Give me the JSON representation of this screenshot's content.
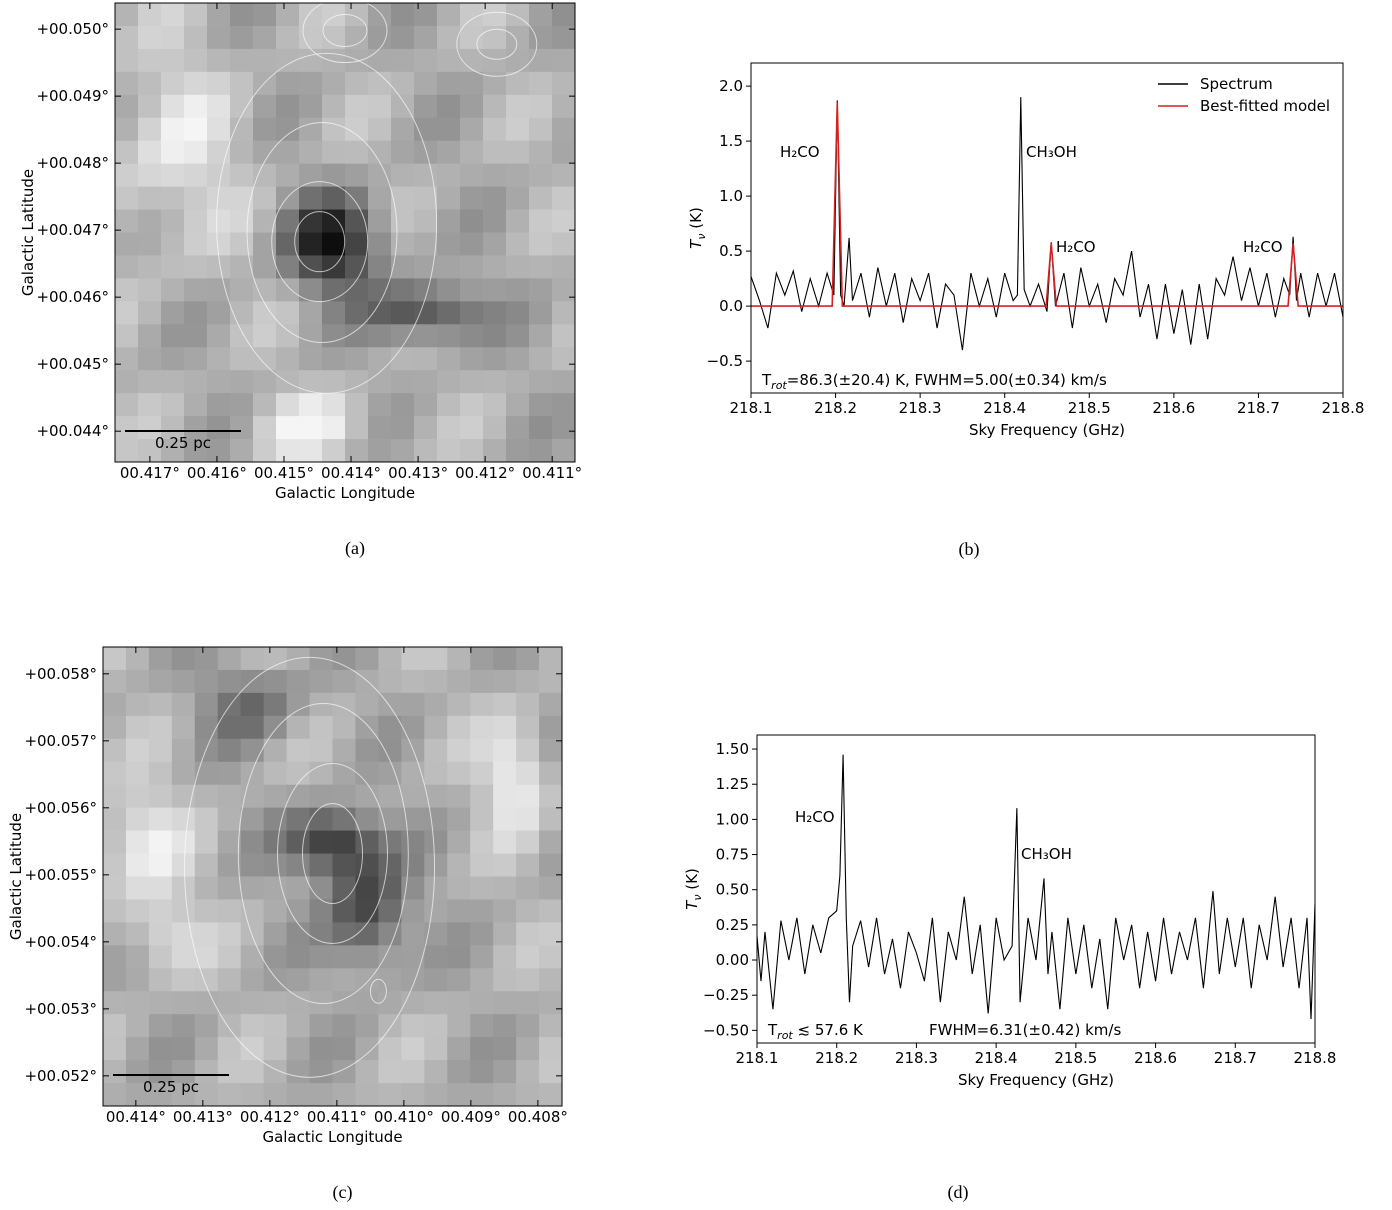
{
  "chart_data": [
    {
      "type": "image",
      "caption": "(a)",
      "xlabel": "Galactic Longitude",
      "ylabel": "Galactic Latitude",
      "scale_bar": "0.25 pc",
      "xlim": [
        0.41752,
        0.41066
      ],
      "ylim": [
        0.04354,
        0.05039
      ],
      "xticks": [
        {
          "value": 0.417,
          "label": "00.417°"
        },
        {
          "value": 0.416,
          "label": "00.416°"
        },
        {
          "value": 0.415,
          "label": "00.415°"
        },
        {
          "value": 0.414,
          "label": "00.414°"
        },
        {
          "value": 0.413,
          "label": "00.413°"
        },
        {
          "value": 0.412,
          "label": "00.412°"
        },
        {
          "value": 0.411,
          "label": "00.411°"
        }
      ],
      "yticks": [
        {
          "value": 0.05,
          "label": "+00.050°"
        },
        {
          "value": 0.049,
          "label": "+00.049°"
        },
        {
          "value": 0.048,
          "label": "+00.048°"
        },
        {
          "value": 0.047,
          "label": "+00.047°"
        },
        {
          "value": 0.046,
          "label": "+00.046°"
        },
        {
          "value": 0.045,
          "label": "+00.045°"
        },
        {
          "value": 0.044,
          "label": "+00.044°"
        }
      ]
    },
    {
      "type": "line",
      "caption": "(b)",
      "xlabel": "Sky Frequency (GHz)",
      "ylabel": {
        "symbol": "T",
        "subscript": "ν",
        "unit": " (K)"
      },
      "xlim": [
        218.1,
        218.8
      ],
      "ylim": [
        -0.79,
        2.21
      ],
      "xticks": [
        218.1,
        218.2,
        218.3,
        218.4,
        218.5,
        218.6,
        218.7,
        218.8
      ],
      "yticks": [
        {
          "value": -0.5,
          "label": "−0.5"
        },
        {
          "value": 0,
          "label": "0.0"
        },
        {
          "value": 0.5,
          "label": "0.5"
        },
        {
          "value": 1,
          "label": "1.0"
        },
        {
          "value": 1.5,
          "label": "1.5"
        },
        {
          "value": 2,
          "label": "2.0"
        }
      ],
      "legend": "upper right",
      "series": [
        {
          "name": "Spectrum",
          "color": "#000000",
          "x": [
            218.1,
            218.11,
            218.12,
            218.13,
            218.14,
            218.15,
            218.16,
            218.17,
            218.18,
            218.19,
            218.198,
            218.202,
            218.206,
            218.21,
            218.216,
            218.22,
            218.23,
            218.24,
            218.25,
            218.26,
            218.27,
            218.28,
            218.29,
            218.3,
            218.31,
            218.32,
            218.33,
            218.34,
            218.35,
            218.36,
            218.37,
            218.38,
            218.39,
            218.4,
            218.41,
            218.415,
            218.419,
            218.423,
            218.43,
            218.44,
            218.45,
            218.455,
            218.46,
            218.47,
            218.48,
            218.49,
            218.5,
            218.51,
            218.52,
            218.53,
            218.54,
            218.55,
            218.56,
            218.57,
            218.58,
            218.59,
            218.6,
            218.61,
            218.62,
            218.63,
            218.64,
            218.65,
            218.66,
            218.67,
            218.68,
            218.69,
            218.7,
            218.71,
            218.72,
            218.73,
            218.737,
            218.741,
            218.745,
            218.75,
            218.76,
            218.77,
            218.78,
            218.79,
            218.8
          ],
          "values": [
            0.27,
            0.05,
            -0.2,
            0.3,
            0.1,
            0.32,
            -0.05,
            0.25,
            0.0,
            0.3,
            0.1,
            1.87,
            0.1,
            0.0,
            0.62,
            0.05,
            0.3,
            -0.1,
            0.35,
            0.0,
            0.3,
            -0.15,
            0.25,
            0.05,
            0.3,
            -0.2,
            0.2,
            0.1,
            -0.4,
            0.3,
            0.0,
            0.25,
            -0.1,
            0.3,
            0.05,
            0.1,
            1.9,
            0.15,
            0.0,
            0.2,
            -0.05,
            0.58,
            0.0,
            0.3,
            -0.2,
            0.35,
            0.0,
            0.2,
            -0.15,
            0.25,
            0.1,
            0.5,
            -0.1,
            0.2,
            -0.3,
            0.2,
            -0.25,
            0.15,
            -0.35,
            0.2,
            -0.3,
            0.25,
            0.1,
            0.45,
            0.05,
            0.35,
            0.0,
            0.3,
            -0.1,
            0.25,
            0.1,
            0.63,
            0.05,
            0.3,
            -0.1,
            0.3,
            0.0,
            0.3,
            -0.1
          ]
        },
        {
          "name": "Best-fitted model",
          "color": "#d62020",
          "x": [
            218.1,
            218.196,
            218.202,
            218.208,
            218.449,
            218.455,
            218.461,
            218.735,
            218.741,
            218.747,
            218.8
          ],
          "values": [
            0,
            0,
            1.85,
            0,
            0,
            0.57,
            0,
            0,
            0.57,
            0,
            0
          ]
        }
      ],
      "annotations": [
        "H₂CO",
        "CH₃OH",
        "H₂CO",
        "H₂CO"
      ],
      "fit": {
        "symbol": "T",
        "subscript": "rot",
        "rest": "=86.3(±20.4) K,  FWHM=5.00(±0.34) km/s"
      }
    },
    {
      "type": "image",
      "caption": "(c)",
      "xlabel": "Galactic Longitude",
      "ylabel": "Galactic Latitude",
      "scale_bar": "0.25 pc",
      "xlim": [
        0.41449,
        0.40764
      ],
      "ylim": [
        0.05155,
        0.0584
      ],
      "xticks": [
        {
          "value": 0.414,
          "label": "00.414°"
        },
        {
          "value": 0.413,
          "label": "00.413°"
        },
        {
          "value": 0.412,
          "label": "00.412°"
        },
        {
          "value": 0.411,
          "label": "00.411°"
        },
        {
          "value": 0.41,
          "label": "00.410°"
        },
        {
          "value": 0.409,
          "label": "00.409°"
        },
        {
          "value": 0.408,
          "label": "00.408°"
        }
      ],
      "yticks": [
        {
          "value": 0.058,
          "label": "+00.058°"
        },
        {
          "value": 0.057,
          "label": "+00.057°"
        },
        {
          "value": 0.056,
          "label": "+00.056°"
        },
        {
          "value": 0.055,
          "label": "+00.055°"
        },
        {
          "value": 0.054,
          "label": "+00.054°"
        },
        {
          "value": 0.053,
          "label": "+00.053°"
        },
        {
          "value": 0.052,
          "label": "+00.052°"
        }
      ]
    },
    {
      "type": "line",
      "caption": "(d)",
      "xlabel": "Sky Frequency (GHz)",
      "ylabel": {
        "symbol": "T",
        "subscript": "ν",
        "unit": " (K)"
      },
      "xlim": [
        218.1,
        218.8
      ],
      "ylim": [
        -0.59,
        1.6
      ],
      "xticks": [
        218.1,
        218.2,
        218.3,
        218.4,
        218.5,
        218.6,
        218.7,
        218.8
      ],
      "yticks": [
        {
          "value": -0.5,
          "label": "−0.50"
        },
        {
          "value": -0.25,
          "label": "−0.25"
        },
        {
          "value": 0,
          "label": "0.00"
        },
        {
          "value": 0.25,
          "label": "0.25"
        },
        {
          "value": 0.5,
          "label": "0.50"
        },
        {
          "value": 0.75,
          "label": "0.75"
        },
        {
          "value": 1,
          "label": "1.00"
        },
        {
          "value": 1.25,
          "label": "1.25"
        },
        {
          "value": 1.5,
          "label": "1.50"
        }
      ],
      "series": [
        {
          "name": "Spectrum",
          "color": "#000000",
          "x": [
            218.1,
            218.105,
            218.11,
            218.12,
            218.13,
            218.14,
            218.15,
            218.16,
            218.17,
            218.18,
            218.19,
            218.2,
            218.204,
            218.208,
            218.212,
            218.216,
            218.22,
            218.23,
            218.24,
            218.25,
            218.26,
            218.27,
            218.28,
            218.29,
            218.3,
            218.31,
            218.32,
            218.33,
            218.34,
            218.35,
            218.36,
            218.37,
            218.38,
            218.39,
            218.4,
            218.41,
            218.42,
            218.426,
            218.43,
            218.44,
            218.45,
            218.46,
            218.465,
            218.47,
            218.48,
            218.49,
            218.5,
            218.51,
            218.52,
            218.53,
            218.54,
            218.55,
            218.56,
            218.57,
            218.58,
            218.59,
            218.6,
            218.61,
            218.62,
            218.63,
            218.64,
            218.65,
            218.66,
            218.672,
            218.68,
            218.69,
            218.7,
            218.71,
            218.72,
            218.73,
            218.74,
            218.75,
            218.76,
            218.77,
            218.78,
            218.79,
            218.795,
            218.8
          ],
          "values": [
            0.17,
            -0.15,
            0.2,
            -0.35,
            0.28,
            0.0,
            0.3,
            -0.1,
            0.25,
            0.05,
            0.3,
            0.35,
            0.6,
            1.46,
            0.3,
            -0.3,
            0.1,
            0.28,
            -0.05,
            0.3,
            -0.1,
            0.15,
            -0.2,
            0.2,
            0.05,
            -0.15,
            0.3,
            -0.3,
            0.2,
            0.0,
            0.45,
            -0.1,
            0.25,
            -0.38,
            0.3,
            0.0,
            0.1,
            1.08,
            -0.3,
            0.3,
            0.0,
            0.58,
            -0.1,
            0.2,
            -0.35,
            0.3,
            -0.1,
            0.25,
            -0.2,
            0.15,
            -0.35,
            0.3,
            0.0,
            0.25,
            -0.2,
            0.2,
            -0.15,
            0.3,
            -0.1,
            0.2,
            0.0,
            0.3,
            -0.2,
            0.49,
            -0.1,
            0.3,
            -0.05,
            0.3,
            -0.2,
            0.25,
            0.0,
            0.45,
            -0.05,
            0.3,
            -0.2,
            0.3,
            -0.42,
            0.4
          ]
        }
      ],
      "annotations": [
        "H₂CO",
        "CH₃OH"
      ],
      "fit": {
        "symbol": "T",
        "subscript": "rot",
        "rest": " ≲ 57.6 K"
      },
      "fwhm": "FWHM=6.31(±0.42) km/s"
    }
  ]
}
